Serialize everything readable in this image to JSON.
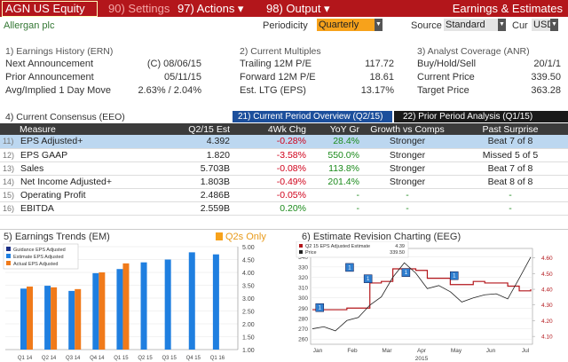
{
  "toolbar": {
    "ticker": "AGN US Equity",
    "settings": "90) Settings",
    "actions": "97) Actions ▾",
    "output": "98) Output ▾",
    "title": "Earnings & Estimates"
  },
  "subheader": {
    "company": "Allergan plc",
    "periodicity_label": "Periodicity",
    "periodicity_value": "Quarterly",
    "source_label": "Source",
    "source_value": "Standard",
    "cur_label": "Cur",
    "cur_value": "USD"
  },
  "earnings_history": {
    "title": "1) Earnings History (ERN)",
    "rows": [
      {
        "label": "Next Announcement",
        "value": "(C) 08/06/15"
      },
      {
        "label": "Prior Announcement",
        "value": "05/11/15"
      },
      {
        "label": "Avg/Implied 1 Day Move",
        "value": "2.63% / 2.04%"
      }
    ]
  },
  "current_multiples": {
    "title": "2) Current Multiples",
    "rows": [
      {
        "label": "Trailing 12M P/E",
        "value": "117.72"
      },
      {
        "label": "Forward 12M P/E",
        "value": "18.61"
      },
      {
        "label": "Est. LTG (EPS)",
        "value": "13.17%"
      }
    ]
  },
  "analyst_coverage": {
    "title": "3) Analyst Coverage (ANR)",
    "rows": [
      {
        "label": "Buy/Hold/Sell",
        "value": "20/1/1"
      },
      {
        "label": "Current Price",
        "value": "339.50"
      },
      {
        "label": "Target Price",
        "value": "363.28"
      }
    ]
  },
  "consensus": {
    "title": "4) Current Consensus (EEO)",
    "tab1": "21) Current Period Overview (Q2/15)",
    "tab2": "22) Prior Period Analysis (Q1/15)",
    "headers": [
      "Measure",
      "Q2/15 Est",
      "4Wk Chg",
      "YoY Gr",
      "Growth vs Comps",
      "Past Surprise"
    ],
    "rows": [
      {
        "num": "11)",
        "measure": "EPS Adjusted+",
        "est": "4.392",
        "chg": "-0.28%",
        "yoy": "28.4%",
        "growth": "Stronger",
        "surprise": "Beat 7 of 8"
      },
      {
        "num": "12)",
        "measure": "EPS GAAP",
        "est": "1.820",
        "chg": "-3.58%",
        "yoy": "550.0%",
        "growth": "Stronger",
        "surprise": "Missed 5 of 5"
      },
      {
        "num": "13)",
        "measure": "Sales",
        "est": "5.703B",
        "chg": "-0.08%",
        "yoy": "113.8%",
        "growth": "Stronger",
        "surprise": "Beat 7 of 8"
      },
      {
        "num": "14)",
        "measure": "Net Income Adjusted+",
        "est": "1.803B",
        "chg": "-0.49%",
        "yoy": "201.4%",
        "growth": "Stronger",
        "surprise": "Beat 8 of 8"
      },
      {
        "num": "15)",
        "measure": "Operating Profit",
        "est": "2.486B",
        "chg": "-0.05%",
        "yoy": "-",
        "growth": "-",
        "surprise": "-"
      },
      {
        "num": "16)",
        "measure": "EBITDA",
        "est": "2.559B",
        "chg": "0.20%",
        "yoy": "-",
        "growth": "-",
        "surprise": "-"
      }
    ]
  },
  "trends": {
    "title": "5) Earnings Trends (EM)",
    "q2s_label": "Q2s Only"
  },
  "revision": {
    "title": "6) Estimate Revision Charting (EEG)"
  },
  "colors": {
    "brand_red": "#b3161b",
    "accent_orange": "#f7a21b",
    "estimate_blue": "#1f7fe0",
    "actual_orange": "#f07a1a",
    "positive": "#1b8a1b",
    "negative": "#d0021b"
  },
  "chart_data": [
    {
      "type": "bar",
      "title": "Earnings Trends",
      "categories": [
        "Q1 14",
        "Q2 14",
        "Q3 14",
        "Q4 14",
        "Q1 15",
        "Q2 15",
        "Q3 15",
        "Q4 15",
        "Q1 16"
      ],
      "series": [
        {
          "name": "Guidance EPS Adjusted",
          "values": [
            null,
            null,
            null,
            null,
            null,
            null,
            null,
            null,
            null
          ]
        },
        {
          "name": "Estimate EPS Adjusted",
          "values": [
            3.37,
            3.48,
            3.28,
            3.97,
            4.13,
            4.39,
            4.5,
            4.78,
            4.7
          ]
        },
        {
          "name": "Actual EPS Adjusted",
          "values": [
            3.45,
            3.42,
            3.35,
            4.0,
            4.35,
            null,
            null,
            null,
            null
          ]
        }
      ],
      "y_ticks": [
        "1.00",
        "1.50",
        "2.00",
        "2.50",
        "3.00",
        "3.50",
        "4.00",
        "4.50",
        "5.00"
      ],
      "ylim": [
        1.0,
        5.0
      ],
      "legend_position": "top-left"
    },
    {
      "type": "line",
      "title": "Estimate Revision Charting",
      "x_ticks": [
        "Jan",
        "Feb",
        "Mar",
        "Apr",
        "May",
        "Jun",
        "Jul"
      ],
      "x_sub_label": "2015",
      "series": [
        {
          "name": "Q2 15 EPS Adjusted Estimate",
          "legend_value": "4.39",
          "axis": "right",
          "values": [
            4.27,
            4.27,
            4.27,
            4.28,
            4.28,
            4.44,
            4.45,
            4.53,
            4.53,
            4.52,
            4.47,
            4.47,
            4.43,
            4.43,
            4.45,
            4.44,
            4.44,
            4.42,
            4.39,
            4.4
          ]
        },
        {
          "name": "Price",
          "legend_value": "339.50",
          "axis": "left",
          "values": [
            270,
            272,
            268,
            278,
            281,
            293,
            301,
            320,
            334,
            324,
            309,
            312,
            306,
            296,
            300,
            303,
            304,
            299,
            319,
            339.5
          ]
        }
      ],
      "y_left_ticks": [
        "260",
        "270",
        "280",
        "290",
        "300",
        "310",
        "320",
        "330",
        "340"
      ],
      "y_left_lim": [
        255,
        348
      ],
      "y_right_ticks": [
        "4.10",
        "4.20",
        "4.30",
        "4.40",
        "4.50",
        "4.60"
      ],
      "y_right_lim": [
        4.05,
        4.66
      ],
      "markers": [
        {
          "x": 0.6,
          "y": 291,
          "label": "1"
        },
        {
          "x": 3.2,
          "y": 330,
          "label": "1"
        },
        {
          "x": 4.8,
          "y": 319,
          "label": "1"
        },
        {
          "x": 8.1,
          "y": 325,
          "label": "1"
        },
        {
          "x": 12.3,
          "y": 322,
          "label": "1"
        }
      ]
    }
  ]
}
